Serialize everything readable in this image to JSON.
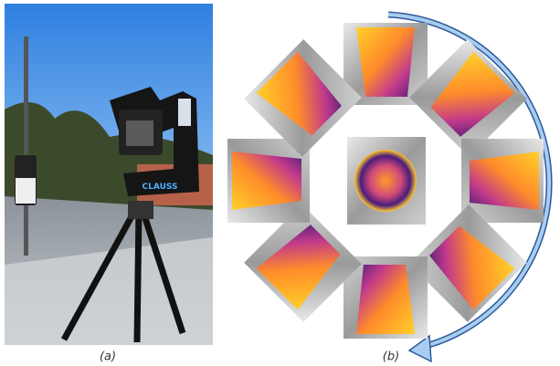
{
  "captions": {
    "a": "(a)",
    "b": "(b)"
  },
  "photo": {
    "brand_label": "CLAUSS"
  }
}
